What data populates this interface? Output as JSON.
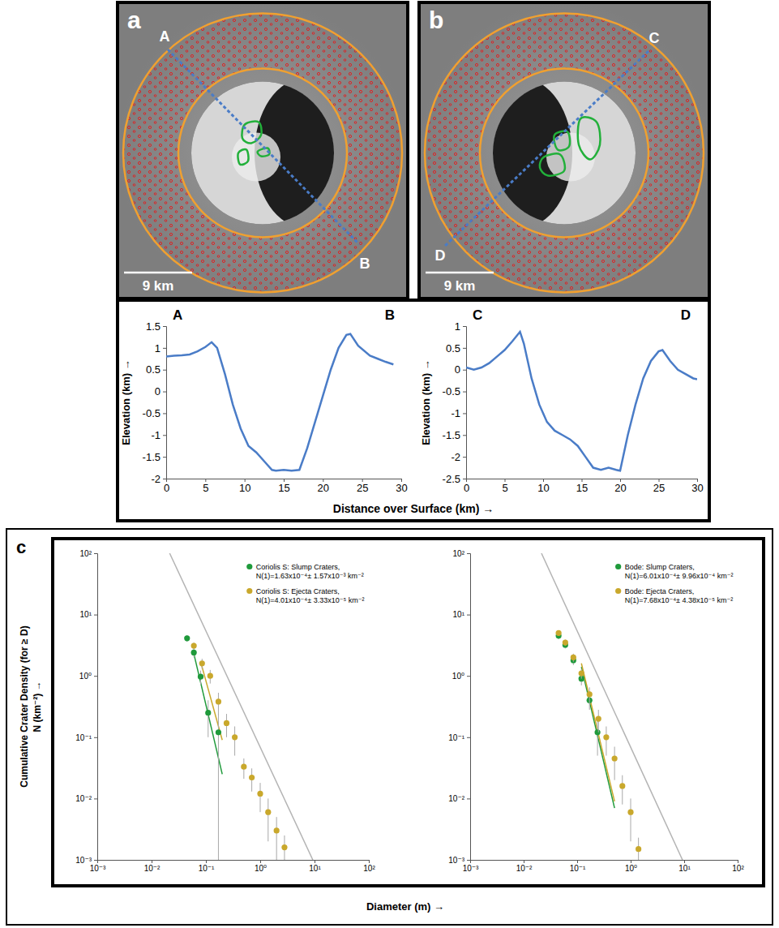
{
  "images": [
    {
      "label": "a",
      "profile_start": "A",
      "profile_end": "B",
      "scale_bar": "9 km"
    },
    {
      "label": "b",
      "profile_start": "C",
      "profile_end": "D",
      "scale_bar": "9 km"
    }
  ],
  "panel_label_c": "c",
  "chart_data": [
    {
      "type": "line",
      "xlabel": "Distance over Surface (km) →",
      "ylabel": "Elevation (km) →",
      "xlim": [
        0,
        30
      ],
      "xticks": [
        0,
        5,
        10,
        15,
        20,
        25,
        30
      ],
      "ylim": [
        -2,
        1.5
      ],
      "yticks": [
        -2,
        -1.5,
        -1,
        -0.5,
        0,
        0.5,
        1,
        1.5
      ],
      "series": [
        {
          "color": "#4a7cc7",
          "x": [
            0,
            1,
            2,
            3,
            4,
            5,
            5.8,
            6.5,
            7.5,
            8.5,
            9.5,
            10.5,
            11.5,
            12.5,
            13.5,
            14,
            15,
            16,
            17,
            18,
            19,
            20,
            21,
            22,
            23,
            23.5,
            24.5,
            26,
            27,
            28,
            29
          ],
          "values": [
            0.8,
            0.82,
            0.83,
            0.85,
            0.92,
            1.02,
            1.13,
            1.0,
            0.4,
            -0.3,
            -0.85,
            -1.25,
            -1.4,
            -1.6,
            -1.8,
            -1.82,
            -1.8,
            -1.82,
            -1.8,
            -1.3,
            -0.7,
            -0.1,
            0.5,
            1.0,
            1.3,
            1.32,
            1.05,
            0.82,
            0.75,
            0.68,
            0.62
          ]
        }
      ]
    },
    {
      "type": "line",
      "ylabel": "Elevation (km) →",
      "xlim": [
        0,
        30
      ],
      "xticks": [
        0,
        5,
        10,
        15,
        20,
        25,
        30
      ],
      "ylim": [
        -2.5,
        1
      ],
      "yticks": [
        -2.5,
        -2,
        -1.5,
        -1,
        -0.5,
        0,
        0.5,
        1
      ],
      "series": [
        {
          "color": "#4a7cc7",
          "x": [
            0,
            1,
            2,
            3,
            4,
            5,
            6,
            7,
            7.5,
            8.5,
            9.5,
            10.5,
            11.5,
            12.5,
            13.5,
            14.5,
            15.5,
            16.5,
            17.5,
            18.5,
            19.5,
            20,
            21,
            22,
            23,
            24,
            25,
            25.5,
            26.5,
            27.5,
            28.5,
            29.5,
            30
          ],
          "values": [
            0.05,
            0.0,
            0.05,
            0.15,
            0.3,
            0.45,
            0.65,
            0.87,
            0.6,
            -0.2,
            -0.8,
            -1.2,
            -1.4,
            -1.5,
            -1.6,
            -1.75,
            -2.0,
            -2.25,
            -2.3,
            -2.25,
            -2.3,
            -2.32,
            -1.5,
            -0.8,
            -0.2,
            0.2,
            0.42,
            0.45,
            0.2,
            0.0,
            -0.1,
            -0.2,
            -0.22
          ]
        }
      ]
    },
    {
      "type": "scatter",
      "log": true,
      "legend": "top-right",
      "xlabel": "Diameter (m) →",
      "ylabel": "Cumulative Crater Density (for ≥ D)\nN (km⁻²) →",
      "xlim": [
        0.001,
        100
      ],
      "xticks": [
        {
          "value": 0.001,
          "label": "10⁻³"
        },
        {
          "value": 0.01,
          "label": "10⁻²"
        },
        {
          "value": 0.1,
          "label": "10⁻¹"
        },
        {
          "value": 1,
          "label": "10⁰"
        },
        {
          "value": 10,
          "label": "10¹"
        },
        {
          "value": 100,
          "label": "10²"
        }
      ],
      "ylim": [
        0.001,
        100
      ],
      "yticks": [
        {
          "value": 0.001,
          "label": "10⁻³"
        },
        {
          "value": 0.01,
          "label": "10⁻²"
        },
        {
          "value": 0.1,
          "label": "10⁻¹"
        },
        {
          "value": 1,
          "label": "10⁰"
        },
        {
          "value": 10,
          "label": "10¹"
        },
        {
          "value": 100,
          "label": "10²"
        }
      ],
      "series": [
        {
          "type": "line",
          "color": "#b4b4b4",
          "x": [
            0.0215,
            9.3
          ],
          "values": [
            100,
            0.001
          ]
        },
        {
          "type": "line",
          "color": "#1f9a3b",
          "x": [
            0.06,
            0.2
          ],
          "values": [
            2.3,
            0.025
          ]
        },
        {
          "type": "line",
          "color": "#c9a82c",
          "x": [
            0.08,
            0.2
          ],
          "values": [
            1.7,
            0.09
          ]
        },
        {
          "type": "scatter",
          "marker": "circle",
          "color": "#1f9a3b",
          "name": "Coriolis S: Slump Craters,\nN(1)=1.63x10⁻⁴± 1.57x10⁻³ km⁻²",
          "x": [
            0.045,
            0.06,
            0.08,
            0.11,
            0.17
          ],
          "values": [
            4.1,
            2.4,
            0.97,
            0.25,
            0.12
          ],
          "errors": [
            0.5,
            0.4,
            0.25,
            0.15,
            0.12
          ]
        },
        {
          "type": "scatter",
          "marker": "circle",
          "color": "#c9a82c",
          "name": "Coriolis S: Ejecta Craters,\nN(1)=4.01x10⁻⁴± 3.33x10⁻⁵ km⁻²",
          "x": [
            0.06,
            0.085,
            0.12,
            0.17,
            0.24,
            0.34,
            0.5,
            0.7,
            1.0,
            1.4,
            2.0,
            2.8
          ],
          "values": [
            3.1,
            1.6,
            1.0,
            0.38,
            0.17,
            0.1,
            0.033,
            0.022,
            0.012,
            0.006,
            0.003,
            0.0016
          ],
          "errors": [
            0.4,
            0.3,
            0.25,
            0.15,
            0.07,
            0.05,
            0.012,
            0.009,
            0.006,
            0.004,
            0.002,
            0.0009
          ]
        }
      ]
    },
    {
      "type": "scatter",
      "log": true,
      "legend": "top-right",
      "xlim": [
        0.001,
        100
      ],
      "xticks": [
        {
          "value": 0.001,
          "label": "10⁻³"
        },
        {
          "value": 0.01,
          "label": "10⁻²"
        },
        {
          "value": 0.1,
          "label": "10⁻¹"
        },
        {
          "value": 1,
          "label": "10⁰"
        },
        {
          "value": 10,
          "label": "10¹"
        },
        {
          "value": 100,
          "label": "10²"
        }
      ],
      "ylim": [
        0.001,
        100
      ],
      "yticks": [
        {
          "value": 0.001,
          "label": "10⁻³"
        },
        {
          "value": 0.01,
          "label": "10⁻²"
        },
        {
          "value": 0.1,
          "label": "10⁻¹"
        },
        {
          "value": 1,
          "label": "10⁰"
        },
        {
          "value": 10,
          "label": "10¹"
        },
        {
          "value": 100,
          "label": "10²"
        }
      ],
      "series": [
        {
          "type": "line",
          "color": "#b4b4b4",
          "x": [
            0.0215,
            9.3
          ],
          "values": [
            100,
            0.001
          ]
        },
        {
          "type": "line",
          "color": "#1f9a3b",
          "x": [
            0.12,
            0.5
          ],
          "values": [
            1.4,
            0.007
          ]
        },
        {
          "type": "line",
          "color": "#c9a82c",
          "x": [
            0.12,
            0.5
          ],
          "values": [
            1.6,
            0.009
          ]
        },
        {
          "type": "scatter",
          "marker": "circle",
          "color": "#1f9a3b",
          "name": "Bode: Slump Craters,\nN(1)=6.01x10⁻⁴± 9.96x10⁻⁴ km⁻²",
          "x": [
            0.045,
            0.06,
            0.085,
            0.12,
            0.17,
            0.24
          ],
          "values": [
            4.5,
            3.2,
            1.8,
            0.9,
            0.4,
            0.12
          ],
          "errors": [
            0.5,
            0.4,
            0.3,
            0.2,
            0.12,
            0.07
          ]
        },
        {
          "type": "scatter",
          "marker": "circle",
          "color": "#c9a82c",
          "name": "Bode: Ejecta Craters,\nN(1)=7.68x10⁻⁴± 4.38x10⁻⁵ km⁻²",
          "x": [
            0.045,
            0.06,
            0.085,
            0.12,
            0.17,
            0.25,
            0.35,
            0.5,
            0.7,
            1.0,
            1.4
          ],
          "values": [
            5.0,
            3.5,
            2.0,
            1.1,
            0.5,
            0.2,
            0.1,
            0.045,
            0.016,
            0.006,
            0.0015
          ],
          "errors": [
            0.5,
            0.4,
            0.3,
            0.2,
            0.15,
            0.08,
            0.05,
            0.025,
            0.008,
            0.004,
            0.0008
          ]
        }
      ]
    }
  ]
}
